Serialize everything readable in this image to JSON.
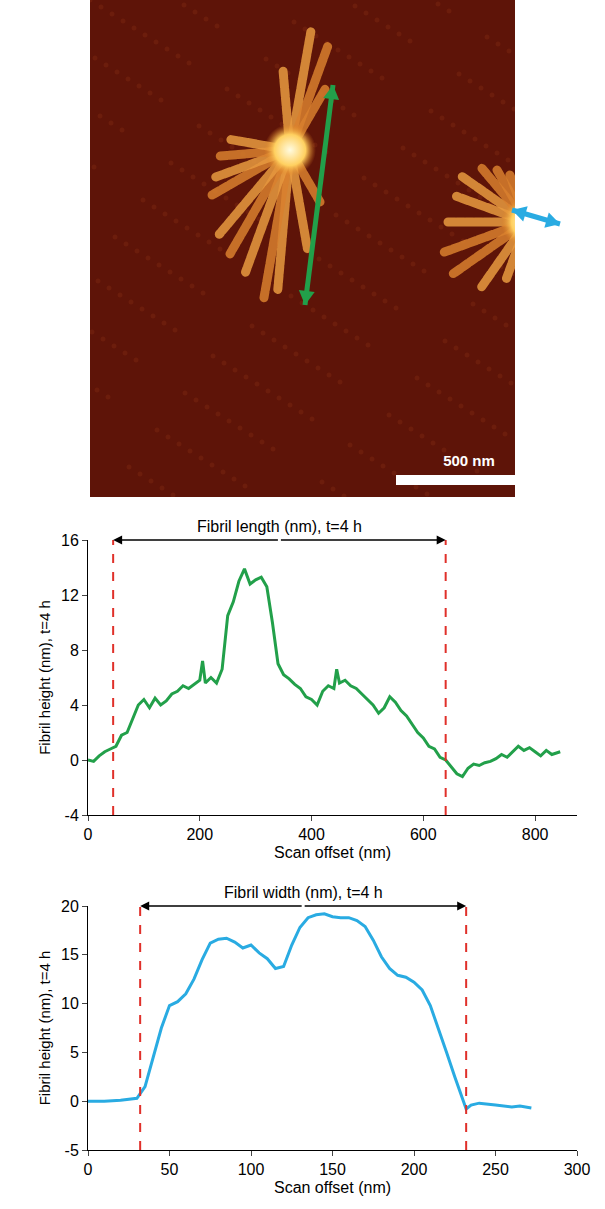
{
  "image": {
    "scale_bar_label": "500 nm"
  },
  "chart_data": [
    {
      "type": "line",
      "x_label": "Scan offset (nm)",
      "y_label": "Fibril height (nm), t=4 h",
      "color": "#22a04a",
      "x": [
        0,
        10,
        20,
        30,
        40,
        50,
        60,
        70,
        80,
        90,
        100,
        110,
        120,
        130,
        140,
        150,
        160,
        170,
        180,
        190,
        200,
        205,
        210,
        220,
        230,
        240,
        250,
        260,
        270,
        280,
        290,
        300,
        310,
        320,
        330,
        340,
        350,
        360,
        370,
        380,
        390,
        400,
        410,
        420,
        430,
        440,
        445,
        450,
        460,
        470,
        480,
        490,
        500,
        510,
        520,
        530,
        540,
        550,
        560,
        570,
        580,
        590,
        600,
        610,
        620,
        630,
        640,
        650,
        660,
        670,
        680,
        690,
        700,
        710,
        720,
        730,
        740,
        750,
        760,
        770,
        780,
        790,
        800,
        810,
        820,
        830,
        845
      ],
      "values": [
        0,
        -0.1,
        0.3,
        0.6,
        0.8,
        1.0,
        1.8,
        2.0,
        3.0,
        4.0,
        4.4,
        3.8,
        4.5,
        4.0,
        4.3,
        4.8,
        5.0,
        5.4,
        5.2,
        5.5,
        5.8,
        7.2,
        5.6,
        6.0,
        5.6,
        6.6,
        10.5,
        11.5,
        13.0,
        13.9,
        12.8,
        13.1,
        13.3,
        12.6,
        10.0,
        7.0,
        6.2,
        5.9,
        5.5,
        5.2,
        4.6,
        4.4,
        4.0,
        5.0,
        5.4,
        5.2,
        6.6,
        5.6,
        5.8,
        5.4,
        5.2,
        4.8,
        4.4,
        4.0,
        3.4,
        3.8,
        4.6,
        4.2,
        3.6,
        3.2,
        2.6,
        2.0,
        1.6,
        1.0,
        0.8,
        0.2,
        0.0,
        -0.5,
        -1.0,
        -1.2,
        -0.6,
        -0.3,
        -0.4,
        -0.2,
        -0.1,
        0.1,
        0.4,
        0.2,
        0.6,
        1.0,
        0.7,
        0.9,
        0.6,
        0.3,
        0.7,
        0.4,
        0.6
      ],
      "xlim": [
        0,
        875
      ],
      "xticks": [
        0,
        200,
        400,
        600,
        800
      ],
      "ylim": [
        -4,
        16
      ],
      "yticks": [
        -4,
        0,
        4,
        8,
        12,
        16
      ],
      "grid": false,
      "annotations": [
        {
          "text": "Fibril length (nm), t=4 h",
          "x0": 45,
          "x1": 640
        }
      ]
    },
    {
      "type": "line",
      "x_label": "Scan offset (nm)",
      "y_label": "Fibril height (nm), t=4 h",
      "color": "#29abe2",
      "x": [
        0,
        10,
        20,
        30,
        35,
        40,
        45,
        50,
        55,
        60,
        65,
        70,
        75,
        80,
        85,
        90,
        95,
        100,
        105,
        110,
        115,
        120,
        125,
        130,
        135,
        140,
        145,
        150,
        155,
        160,
        165,
        170,
        175,
        180,
        185,
        190,
        195,
        200,
        205,
        210,
        215,
        220,
        225,
        230,
        232,
        235,
        240,
        250,
        260,
        265,
        272
      ],
      "values": [
        0,
        0,
        0.1,
        0.3,
        1.5,
        4.5,
        7.5,
        9.8,
        10.2,
        11.0,
        12.5,
        14.5,
        16.2,
        16.6,
        16.7,
        16.3,
        15.7,
        16.0,
        15.2,
        14.6,
        13.6,
        13.8,
        16.0,
        17.8,
        18.8,
        19.1,
        19.2,
        18.9,
        18.8,
        18.8,
        18.5,
        17.9,
        16.5,
        14.8,
        13.6,
        12.9,
        12.7,
        12.2,
        11.4,
        9.8,
        7.5,
        5.0,
        2.5,
        0.2,
        -0.8,
        -0.4,
        -0.2,
        -0.4,
        -0.6,
        -0.5,
        -0.7
      ],
      "xlim": [
        0,
        300
      ],
      "xticks": [
        0,
        50,
        100,
        150,
        200,
        250,
        300
      ],
      "ylim": [
        -5,
        20
      ],
      "yticks": [
        -5,
        0,
        5,
        10,
        15,
        20
      ],
      "grid": false,
      "annotations": [
        {
          "text": "Fibril width (nm), t=4 h",
          "x0": 32,
          "x1": 232
        }
      ]
    }
  ]
}
